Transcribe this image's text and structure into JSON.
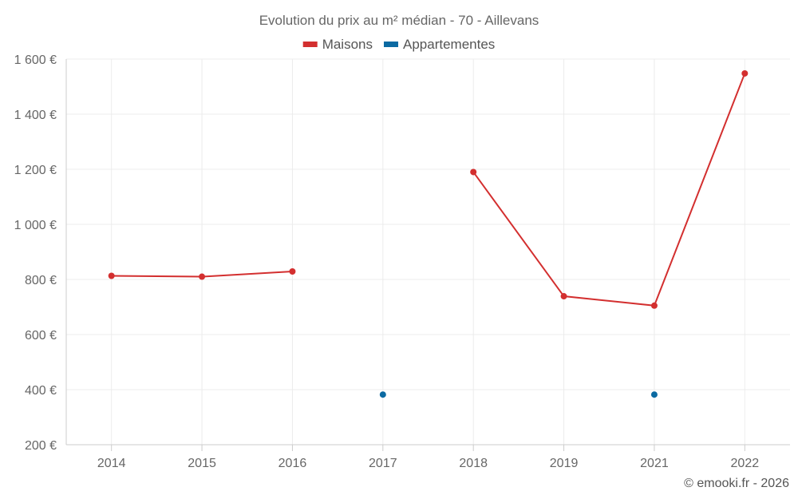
{
  "chart_data": {
    "type": "line",
    "title": "Evolution du prix au m² médian - 70 - Aillevans",
    "categories": [
      "2014",
      "2015",
      "2016",
      "2017",
      "2018",
      "2019",
      "2021",
      "2022"
    ],
    "ylim": [
      200,
      1600
    ],
    "yticks": [
      200,
      400,
      600,
      800,
      1000,
      1200,
      1400,
      1600
    ],
    "ytick_labels": [
      "200 €",
      "400 €",
      "600 €",
      "800 €",
      "1 000 €",
      "1 200 €",
      "1 400 €",
      "1 600 €"
    ],
    "grid": true,
    "legend_position": "top",
    "series": [
      {
        "name": "Maisons",
        "color": "#d32f2f",
        "values": [
          813,
          810,
          829,
          null,
          1190,
          739,
          705,
          1548
        ]
      },
      {
        "name": "Appartementes",
        "color": "#0b6aa2",
        "values": [
          null,
          null,
          null,
          382,
          null,
          null,
          382,
          null
        ]
      }
    ]
  },
  "credit": "© emooki.fr - 2026"
}
